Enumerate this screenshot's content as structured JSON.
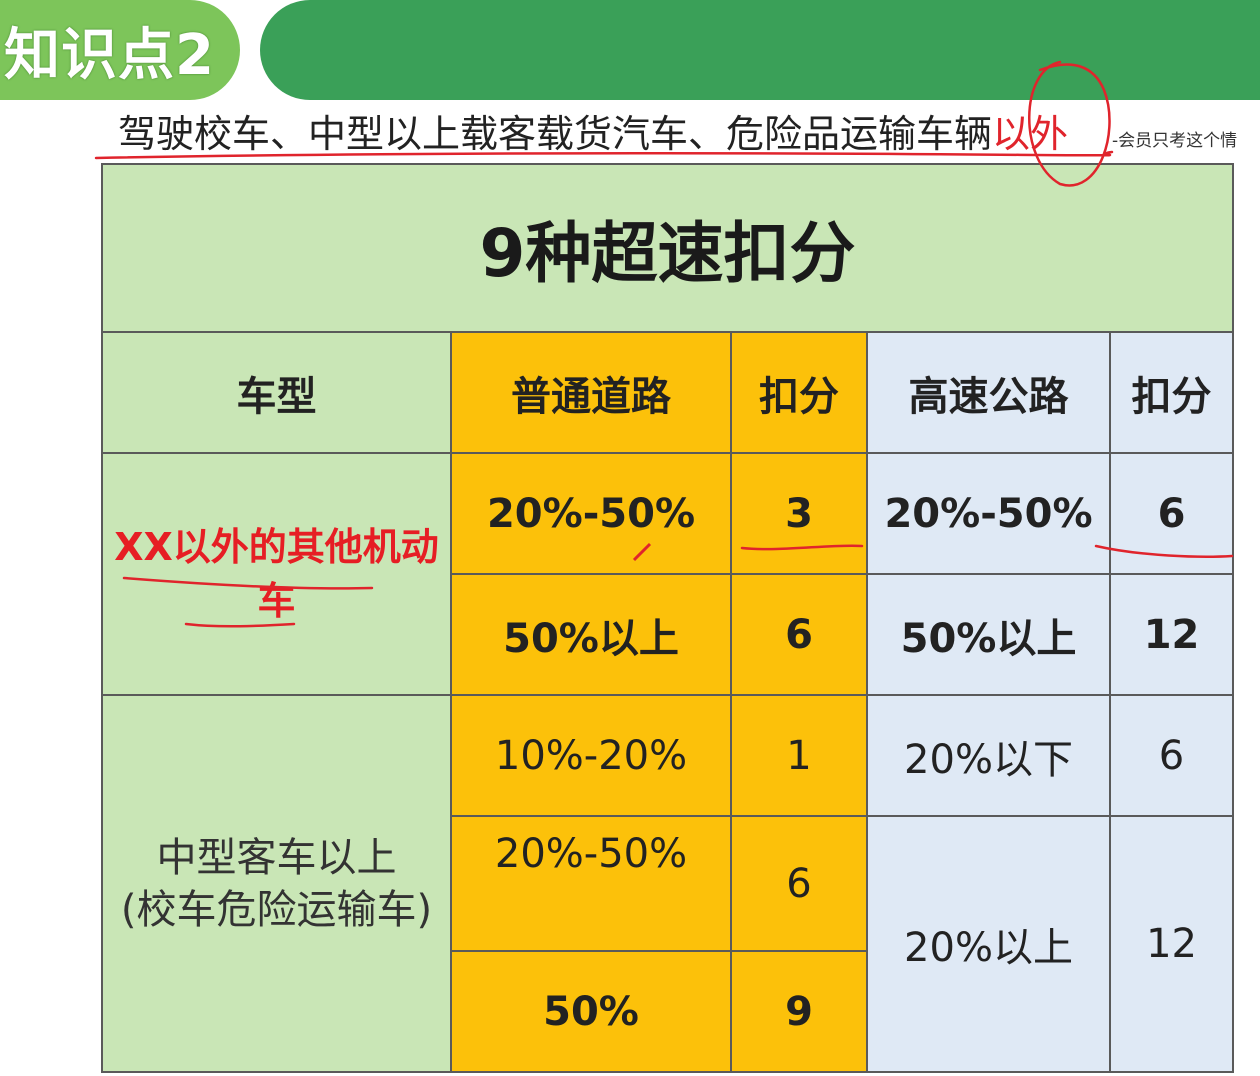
{
  "header": {
    "badge": "知识点2",
    "subtitle_main": "驾驶校车、中型以上载客载货汽车、危险品运输车辆",
    "subtitle_highlight": "以外",
    "side_note": "-会员只考这个情"
  },
  "table": {
    "title": "9种超速扣分",
    "columns": [
      "车型",
      "普通道路",
      "扣分",
      "高速公路",
      "扣分"
    ],
    "group1": {
      "vehicle": "XX以外的其他机动车",
      "rows": [
        {
          "road": "20%-50%",
          "road_points": "3",
          "highway": "20%-50%",
          "highway_points": "6"
        },
        {
          "road": "50%以上",
          "road_points": "6",
          "highway": "50%以上",
          "highway_points": "12"
        }
      ]
    },
    "group2": {
      "vehicle_line1": "中型客车以上",
      "vehicle_line2": "(校车危险运输车)",
      "rows": [
        {
          "road": "10%-20%",
          "road_points": "1",
          "highway": "20%以下",
          "highway_points": "6"
        },
        {
          "road": "20%-50%",
          "road_points": "6",
          "highway": "20%以上",
          "highway_points": "12"
        },
        {
          "road": "50%",
          "road_points": "9"
        }
      ]
    }
  },
  "colors": {
    "badge_green": "#7dc55a",
    "banner_green": "#3aa058",
    "table_green": "#c9e6b6",
    "table_yellow": "#fcc10a",
    "table_blue": "#dfe9f5",
    "annotation_red": "#e0242c"
  }
}
